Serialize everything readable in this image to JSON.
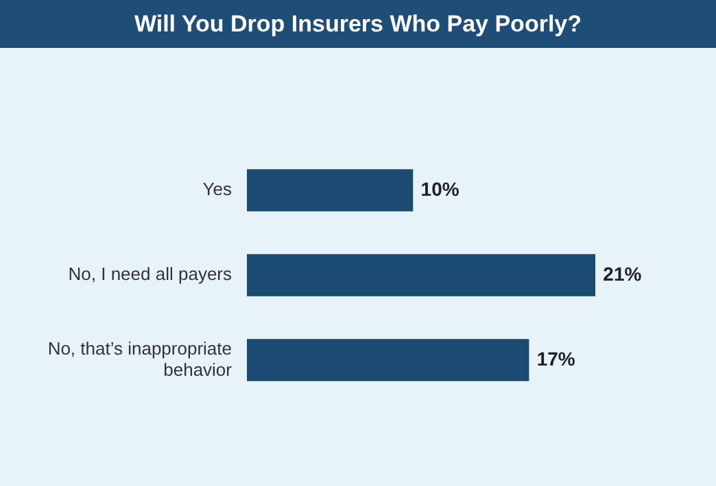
{
  "chart_data": {
    "type": "bar",
    "orientation": "horizontal",
    "title": "Will You Drop Insurers Who Pay Poorly?",
    "categories": [
      "Yes",
      "No, I need all payers",
      "No, that’s inappropriate behavior"
    ],
    "values": [
      10,
      21,
      17
    ],
    "value_labels": [
      "10%",
      "21%",
      "17%"
    ],
    "color": "#1b4a72",
    "tick_labels": "y",
    "legend": false
  }
}
